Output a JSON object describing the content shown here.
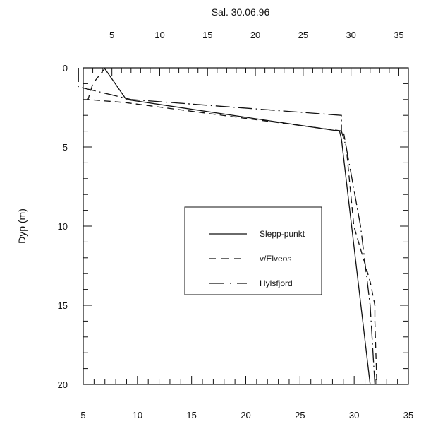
{
  "chart_data": {
    "type": "line",
    "title": "Sal. 30.06.96",
    "xlabel": "",
    "ylabel": "Dyp (m)",
    "x_axis_position": "top-and-bottom",
    "y_inverted": true,
    "xlim_top": [
      2,
      36
    ],
    "xlim_bottom": [
      5,
      35
    ],
    "ylim": [
      0,
      20
    ],
    "x_ticks": [
      5,
      10,
      15,
      20,
      25,
      30,
      35
    ],
    "y_ticks": [
      0,
      5,
      10,
      15,
      20
    ],
    "grid": false,
    "legend_position": "center-right",
    "series": [
      {
        "name": "Slepp-punkt",
        "style": "solid",
        "points": [
          [
            4.2,
            0
          ],
          [
            6.5,
            2.0
          ],
          [
            28.8,
            4.0
          ],
          [
            29.0,
            4.5
          ],
          [
            32.0,
            20.0
          ]
        ]
      },
      {
        "name": "v/Elveos",
        "style": "dashed",
        "points": [
          [
            4.3,
            0
          ],
          [
            3.0,
            1.0
          ],
          [
            2.5,
            2.0
          ],
          [
            6.5,
            2.2
          ],
          [
            29.2,
            4.0
          ],
          [
            29.5,
            5.0
          ],
          [
            30.3,
            10.0
          ],
          [
            32.0,
            13.5
          ],
          [
            32.5,
            15.0
          ],
          [
            32.5,
            16.0
          ],
          [
            32.7,
            20.0
          ]
        ]
      },
      {
        "name": "Hylsfjord",
        "style": "dashdot",
        "points": [
          [
            1.5,
            0
          ],
          [
            1.5,
            1.2
          ],
          [
            7.0,
            2.0
          ],
          [
            29.0,
            3.0
          ],
          [
            29.0,
            4.0
          ],
          [
            29.5,
            5.0
          ],
          [
            31.0,
            10.0
          ],
          [
            32.0,
            15.0
          ],
          [
            32.5,
            20.0
          ]
        ]
      }
    ]
  }
}
